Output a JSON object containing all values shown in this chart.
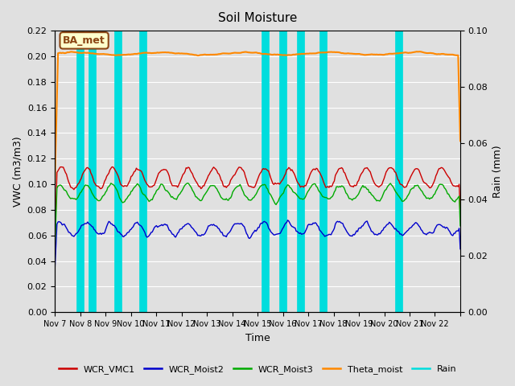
{
  "title": "Soil Moisture",
  "xlabel": "Time",
  "ylabel_left": "VWC (m3/m3)",
  "ylabel_right": "Rain (mm)",
  "ylim_left": [
    0.0,
    0.22
  ],
  "ylim_right": [
    0.0,
    0.1
  ],
  "xlim": [
    0,
    16
  ],
  "x_tick_positions": [
    0,
    1,
    2,
    3,
    4,
    5,
    6,
    7,
    8,
    9,
    10,
    11,
    12,
    13,
    14,
    15,
    16
  ],
  "x_tick_labels": [
    "Nov 7",
    "Nov 8",
    "Nov 9",
    "Nov 10",
    "Nov 11",
    "Nov 12",
    "Nov 13",
    "Nov 14",
    "Nov 15",
    "Nov 16",
    "Nov 17",
    "Nov 18",
    "Nov 19",
    "Nov 20",
    "Nov 21",
    "Nov 22",
    ""
  ],
  "yticks_left": [
    0.0,
    0.02,
    0.04,
    0.06,
    0.08,
    0.1,
    0.12,
    0.14,
    0.16,
    0.18,
    0.2,
    0.22
  ],
  "yticks_right": [
    0.0,
    0.02,
    0.04,
    0.06,
    0.08,
    0.1
  ],
  "background_color": "#e0e0e0",
  "plot_bg_color": "#e0e0e0",
  "grid_color": "#ffffff",
  "annotation_text": "BA_met",
  "annotation_bg": "#ffffcc",
  "annotation_border": "#8b4513",
  "cyan_lines": [
    1.0,
    1.5,
    2.5,
    3.5,
    8.3,
    9.0,
    9.7,
    10.6,
    13.6
  ],
  "cyan_linewidth": 7,
  "colors": {
    "WCR_VMC1": "#cc0000",
    "WCR_Moist2": "#0000cc",
    "WCR_Moist3": "#00aa00",
    "Theta_moist": "#ff8800",
    "Rain": "#00dddd"
  },
  "legend_labels": [
    "WCR_VMC1",
    "WCR_Moist2",
    "WCR_Moist3",
    "Theta_moist",
    "Rain"
  ],
  "legend_colors": [
    "#cc0000",
    "#0000cc",
    "#00aa00",
    "#ff8800",
    "#00dddd"
  ]
}
